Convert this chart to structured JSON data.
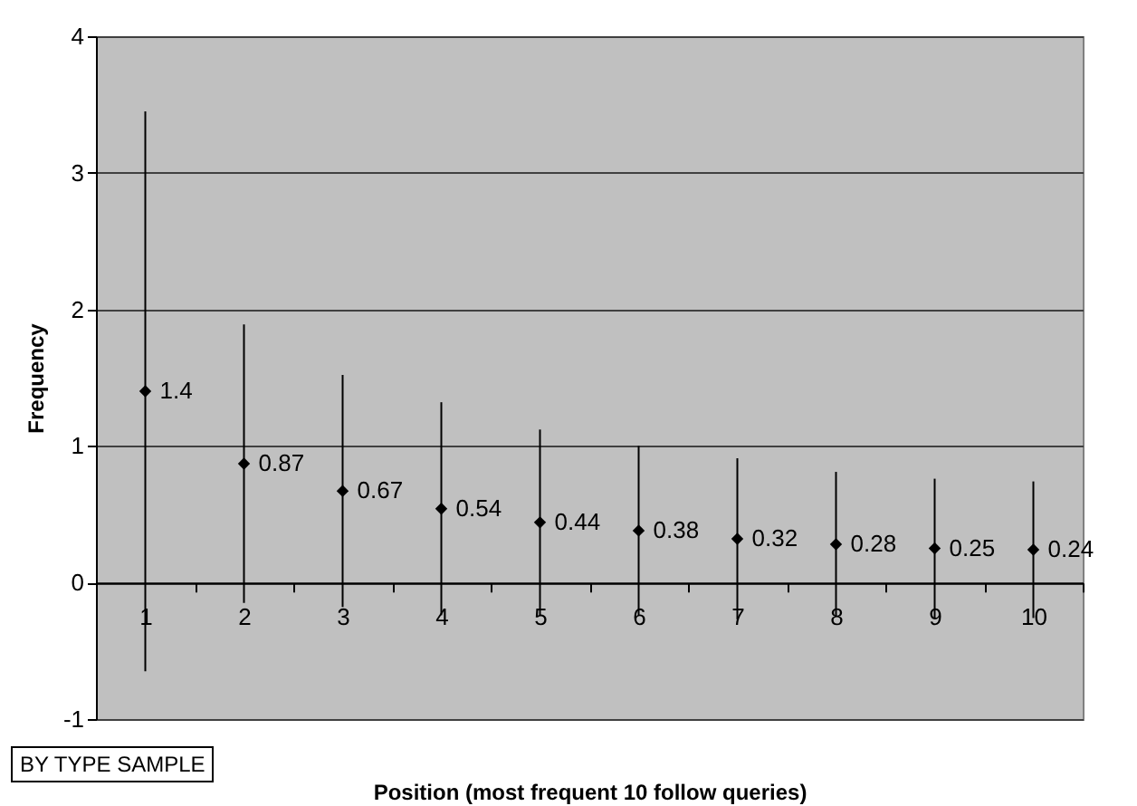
{
  "chart_data": {
    "type": "scatter",
    "xlabel": "Position (most frequent 10 follow queries)",
    "ylabel": "Frequency",
    "categories": [
      "1",
      "2",
      "3",
      "4",
      "5",
      "6",
      "7",
      "8",
      "9",
      "10"
    ],
    "values": [
      1.4,
      0.87,
      0.67,
      0.54,
      0.44,
      0.38,
      0.32,
      0.28,
      0.25,
      0.24
    ],
    "errors": [
      2.05,
      1.02,
      0.85,
      0.78,
      0.68,
      0.62,
      0.59,
      0.53,
      0.51,
      0.5
    ],
    "color": "#000000",
    "marker": "diamond",
    "data_labels": true,
    "ylim": [
      -1,
      4
    ],
    "yticks": [
      -1,
      0,
      1,
      2,
      3,
      4
    ],
    "grid": "y",
    "annotations": [
      "BY TYPE SAMPLE"
    ]
  }
}
